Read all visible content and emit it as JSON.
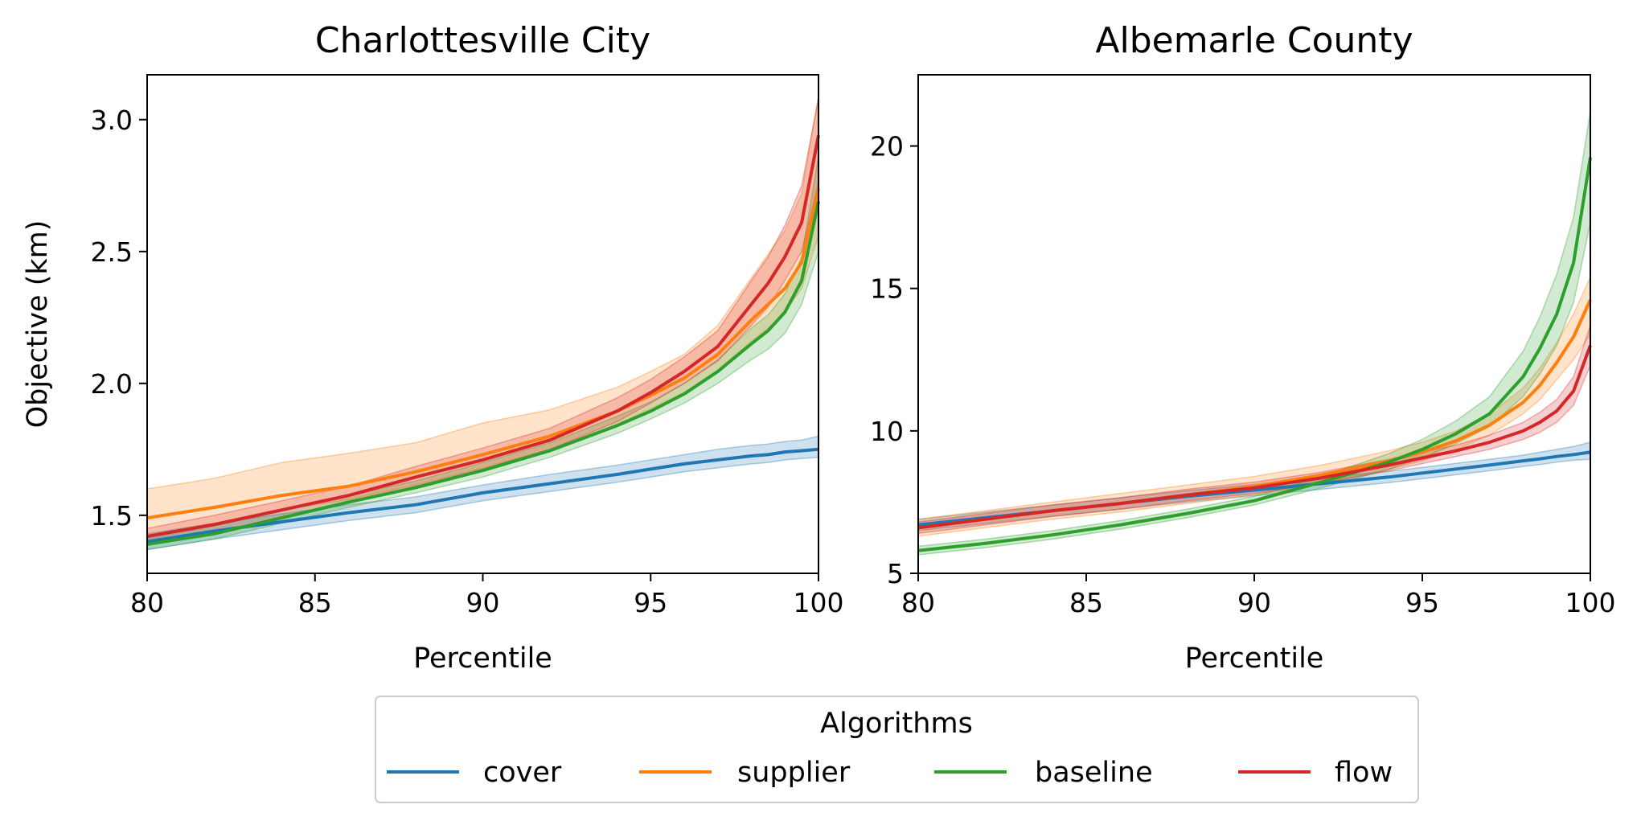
{
  "chart_data": [
    {
      "type": "line",
      "title": "Charlottesville City",
      "xlabel": "Percentile",
      "ylabel": "Objective (km)",
      "xlim": [
        80,
        100
      ],
      "ylim": [
        1.28,
        3.17
      ],
      "xticks": [
        "80",
        "85",
        "90",
        "95",
        "100"
      ],
      "yticks": [
        "1.5",
        "2.0",
        "2.5",
        "3.0"
      ],
      "grid": false,
      "x": [
        80,
        82,
        84,
        86,
        88,
        90,
        92,
        94,
        95,
        96,
        97,
        98,
        98.5,
        99,
        99.5,
        100
      ],
      "series": [
        {
          "name": "cover",
          "color": "#1f77b4",
          "values": [
            1.4,
            1.44,
            1.475,
            1.51,
            1.54,
            1.585,
            1.62,
            1.655,
            1.675,
            1.695,
            1.71,
            1.725,
            1.73,
            1.74,
            1.745,
            1.75
          ],
          "lower": [
            1.37,
            1.41,
            1.445,
            1.48,
            1.51,
            1.555,
            1.59,
            1.625,
            1.645,
            1.665,
            1.68,
            1.695,
            1.7,
            1.71,
            1.715,
            1.72
          ],
          "upper": [
            1.43,
            1.47,
            1.505,
            1.54,
            1.57,
            1.615,
            1.655,
            1.69,
            1.71,
            1.73,
            1.75,
            1.765,
            1.77,
            1.78,
            1.785,
            1.8
          ]
        },
        {
          "name": "supplier",
          "color": "#ff7f0e",
          "values": [
            1.49,
            1.53,
            1.575,
            1.61,
            1.665,
            1.73,
            1.8,
            1.895,
            1.955,
            2.02,
            2.11,
            2.24,
            2.3,
            2.36,
            2.46,
            2.74
          ],
          "lower": [
            1.42,
            1.47,
            1.52,
            1.56,
            1.615,
            1.68,
            1.75,
            1.845,
            1.905,
            1.965,
            2.05,
            2.16,
            2.21,
            2.27,
            2.36,
            2.56
          ],
          "upper": [
            1.6,
            1.64,
            1.7,
            1.735,
            1.775,
            1.85,
            1.9,
            1.985,
            2.045,
            2.11,
            2.22,
            2.4,
            2.49,
            2.58,
            2.72,
            3.09
          ]
        },
        {
          "name": "baseline",
          "color": "#2ca02c",
          "values": [
            1.39,
            1.43,
            1.49,
            1.55,
            1.605,
            1.67,
            1.745,
            1.84,
            1.895,
            1.96,
            2.045,
            2.15,
            2.2,
            2.27,
            2.39,
            2.69
          ],
          "lower": [
            1.37,
            1.41,
            1.47,
            1.53,
            1.585,
            1.645,
            1.72,
            1.81,
            1.865,
            1.925,
            2.0,
            2.09,
            2.13,
            2.19,
            2.3,
            2.5
          ],
          "upper": [
            1.41,
            1.46,
            1.515,
            1.575,
            1.63,
            1.7,
            1.775,
            1.875,
            1.93,
            2.0,
            2.09,
            2.21,
            2.26,
            2.34,
            2.48,
            2.86
          ]
        },
        {
          "name": "flow",
          "color": "#d62728",
          "values": [
            1.42,
            1.465,
            1.52,
            1.575,
            1.645,
            1.71,
            1.785,
            1.895,
            1.965,
            2.045,
            2.14,
            2.3,
            2.38,
            2.48,
            2.61,
            2.94
          ],
          "lower": [
            1.39,
            1.435,
            1.49,
            1.545,
            1.61,
            1.675,
            1.75,
            1.855,
            1.925,
            2.0,
            2.085,
            2.22,
            2.29,
            2.39,
            2.5,
            2.76
          ],
          "upper": [
            1.45,
            1.5,
            1.555,
            1.61,
            1.685,
            1.755,
            1.83,
            1.945,
            2.015,
            2.1,
            2.2,
            2.39,
            2.48,
            2.6,
            2.75,
            3.08
          ]
        }
      ]
    },
    {
      "type": "line",
      "title": "Albemarle County",
      "xlabel": "Percentile",
      "ylabel": "",
      "xlim": [
        80,
        100
      ],
      "ylim": [
        5,
        22.5
      ],
      "xticks": [
        "80",
        "85",
        "90",
        "95",
        "100"
      ],
      "yticks": [
        "5",
        "10",
        "15",
        "20"
      ],
      "grid": false,
      "x": [
        80,
        82,
        84,
        86,
        88,
        90,
        92,
        94,
        95,
        96,
        97,
        98,
        98.5,
        99,
        99.5,
        100
      ],
      "series": [
        {
          "name": "cover",
          "color": "#1f77b4",
          "values": [
            6.7,
            6.95,
            7.2,
            7.45,
            7.7,
            7.92,
            8.15,
            8.38,
            8.52,
            8.66,
            8.8,
            8.95,
            9.02,
            9.1,
            9.17,
            9.25
          ],
          "lower": [
            6.5,
            6.75,
            7.0,
            7.25,
            7.5,
            7.72,
            7.95,
            8.18,
            8.32,
            8.46,
            8.6,
            8.75,
            8.82,
            8.9,
            8.97,
            9.0
          ],
          "upper": [
            6.9,
            7.15,
            7.4,
            7.65,
            7.9,
            8.12,
            8.35,
            8.58,
            8.72,
            8.86,
            9.0,
            9.15,
            9.25,
            9.35,
            9.45,
            9.6
          ]
        },
        {
          "name": "supplier",
          "color": "#ff7f0e",
          "values": [
            6.6,
            6.9,
            7.2,
            7.45,
            7.75,
            8.05,
            8.45,
            8.95,
            9.25,
            9.65,
            10.2,
            11.0,
            11.6,
            12.4,
            13.3,
            14.6
          ],
          "lower": [
            6.3,
            6.6,
            6.9,
            7.15,
            7.45,
            7.75,
            8.15,
            8.65,
            8.95,
            9.35,
            9.85,
            10.6,
            11.1,
            11.8,
            12.5,
            13.4
          ],
          "upper": [
            6.9,
            7.2,
            7.5,
            7.8,
            8.1,
            8.4,
            8.8,
            9.3,
            9.6,
            10.0,
            10.6,
            11.5,
            12.2,
            13.1,
            14.1,
            15.4
          ]
        },
        {
          "name": "baseline",
          "color": "#2ca02c",
          "values": [
            5.8,
            6.05,
            6.35,
            6.7,
            7.1,
            7.55,
            8.2,
            8.9,
            9.35,
            9.9,
            10.6,
            11.9,
            12.9,
            14.1,
            15.9,
            19.6
          ],
          "lower": [
            5.65,
            5.9,
            6.2,
            6.55,
            6.95,
            7.4,
            8.0,
            8.65,
            9.05,
            9.55,
            10.15,
            11.2,
            12.0,
            13.0,
            14.5,
            17.3
          ],
          "upper": [
            5.95,
            6.2,
            6.5,
            6.85,
            7.25,
            7.7,
            8.4,
            9.2,
            9.7,
            10.35,
            11.2,
            12.8,
            14.0,
            15.5,
            17.5,
            21.2
          ]
        },
        {
          "name": "flow",
          "color": "#d62728",
          "values": [
            6.6,
            6.9,
            7.2,
            7.45,
            7.75,
            8.0,
            8.35,
            8.8,
            9.05,
            9.3,
            9.6,
            10.0,
            10.3,
            10.7,
            11.4,
            13.0
          ],
          "lower": [
            6.4,
            6.7,
            7.0,
            7.25,
            7.55,
            7.8,
            8.15,
            8.6,
            8.85,
            9.1,
            9.35,
            9.7,
            9.95,
            10.3,
            10.9,
            12.3
          ],
          "upper": [
            6.8,
            7.1,
            7.4,
            7.65,
            7.95,
            8.2,
            8.55,
            9.0,
            9.25,
            9.5,
            9.85,
            10.3,
            10.65,
            11.1,
            11.9,
            13.7
          ]
        }
      ]
    }
  ],
  "legend": {
    "title": "Algorithms",
    "placement": "bottom-center",
    "items": [
      {
        "label": "cover",
        "color": "#1f77b4"
      },
      {
        "label": "supplier",
        "color": "#ff7f0e"
      },
      {
        "label": "baseline",
        "color": "#2ca02c"
      },
      {
        "label": "flow",
        "color": "#d62728"
      }
    ]
  }
}
